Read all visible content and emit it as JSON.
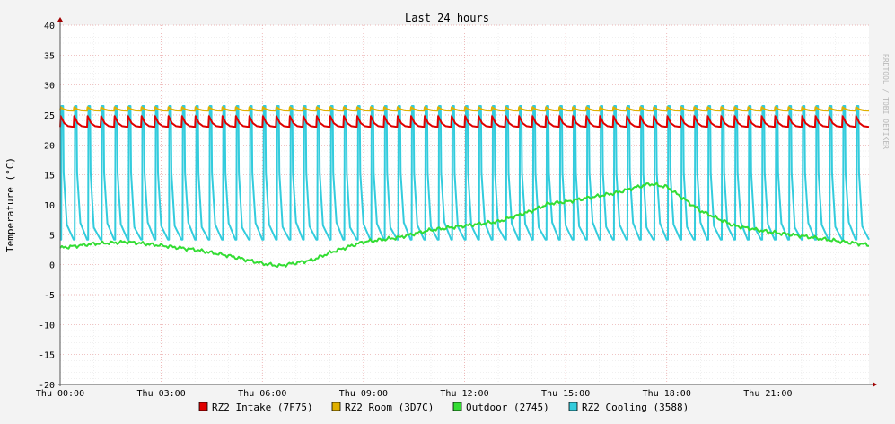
{
  "chart_data": {
    "type": "line",
    "title": "Last 24 hours",
    "ylabel": "Temperature (°C)",
    "watermark": "RRDTOOL / TOBI OETIKER",
    "ylim": [
      -20,
      40
    ],
    "yticks": [
      40,
      35,
      30,
      25,
      20,
      15,
      10,
      5,
      0,
      -5,
      -10,
      -15,
      -20
    ],
    "xlim_hours": [
      0,
      24
    ],
    "xticks": [
      {
        "hour": 0,
        "label": "Thu 00:00"
      },
      {
        "hour": 3,
        "label": "Thu 03:00"
      },
      {
        "hour": 6,
        "label": "Thu 06:00"
      },
      {
        "hour": 9,
        "label": "Thu 09:00"
      },
      {
        "hour": 12,
        "label": "Thu 12:00"
      },
      {
        "hour": 15,
        "label": "Thu 15:00"
      },
      {
        "hour": 18,
        "label": "Thu 18:00"
      },
      {
        "hour": 21,
        "label": "Thu 21:00"
      }
    ],
    "grid": true,
    "legend_position": "bottom",
    "series": [
      {
        "name": "RZ2 Intake (7F75)",
        "color": "#e00000",
        "pattern": "sawtooth",
        "base": 23.0,
        "peak": 24.8
      },
      {
        "name": "RZ2 Room (3D7C)",
        "color": "#e0b000",
        "pattern": "sawtooth",
        "base": 25.7,
        "peak": 26.3
      },
      {
        "name": "Outdoor (2745)",
        "color": "#33dd33",
        "pattern": "smooth",
        "x": [
          0,
          1,
          2,
          3,
          4,
          5,
          6,
          6.5,
          7,
          7.5,
          8,
          9,
          10,
          11,
          12,
          13,
          14,
          14.5,
          15,
          16,
          16.5,
          17,
          17.5,
          18,
          19,
          20,
          21,
          22,
          23,
          24
        ],
        "values": [
          2.8,
          3.5,
          3.8,
          3.2,
          2.5,
          1.5,
          0.2,
          -0.2,
          0.3,
          0.8,
          2.0,
          3.8,
          4.5,
          5.8,
          6.5,
          7.2,
          9.0,
          10.2,
          10.5,
          11.5,
          12.0,
          12.8,
          13.5,
          13.0,
          9.0,
          6.5,
          5.5,
          4.8,
          4.0,
          3.3
        ]
      },
      {
        "name": "RZ2 Cooling (3588)",
        "color": "#33ccdd",
        "pattern": "spikes",
        "base": 4.2,
        "peak": 26.5
      }
    ]
  }
}
